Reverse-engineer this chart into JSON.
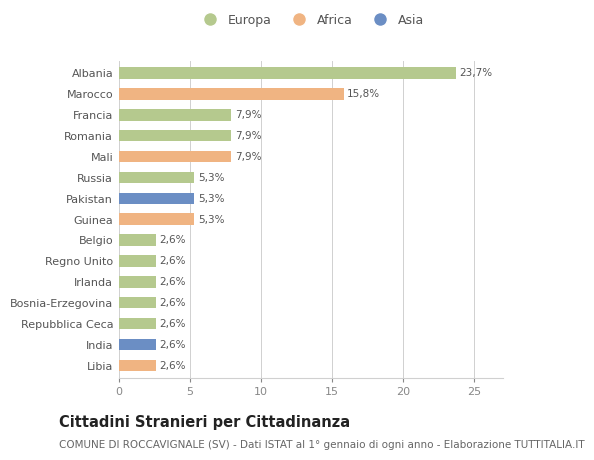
{
  "categories": [
    "Albania",
    "Marocco",
    "Francia",
    "Romania",
    "Mali",
    "Russia",
    "Pakistan",
    "Guinea",
    "Belgio",
    "Regno Unito",
    "Irlanda",
    "Bosnia-Erzegovina",
    "Repubblica Ceca",
    "India",
    "Libia"
  ],
  "values": [
    23.7,
    15.8,
    7.9,
    7.9,
    7.9,
    5.3,
    5.3,
    5.3,
    2.6,
    2.6,
    2.6,
    2.6,
    2.6,
    2.6,
    2.6
  ],
  "continents": [
    "Europa",
    "Africa",
    "Europa",
    "Europa",
    "Africa",
    "Europa",
    "Asia",
    "Africa",
    "Europa",
    "Europa",
    "Europa",
    "Europa",
    "Europa",
    "Asia",
    "Africa"
  ],
  "labels": [
    "23,7%",
    "15,8%",
    "7,9%",
    "7,9%",
    "7,9%",
    "5,3%",
    "5,3%",
    "5,3%",
    "2,6%",
    "2,6%",
    "2,6%",
    "2,6%",
    "2,6%",
    "2,6%",
    "2,6%"
  ],
  "continent_colors": {
    "Europa": "#b5c98e",
    "Africa": "#f0b482",
    "Asia": "#6b8ec4"
  },
  "legend_items": [
    "Europa",
    "Africa",
    "Asia"
  ],
  "xlim": [
    0,
    27
  ],
  "xticks": [
    0,
    5,
    10,
    15,
    20,
    25
  ],
  "title": "Cittadini Stranieri per Cittadinanza",
  "subtitle": "COMUNE DI ROCCAVIGNALE (SV) - Dati ISTAT al 1° gennaio di ogni anno - Elaborazione TUTTITALIA.IT",
  "bg_color": "#ffffff",
  "grid_color": "#d0d0d0",
  "bar_height": 0.55,
  "title_fontsize": 10.5,
  "subtitle_fontsize": 7.5,
  "label_fontsize": 7.5,
  "tick_fontsize": 8,
  "legend_fontsize": 9
}
